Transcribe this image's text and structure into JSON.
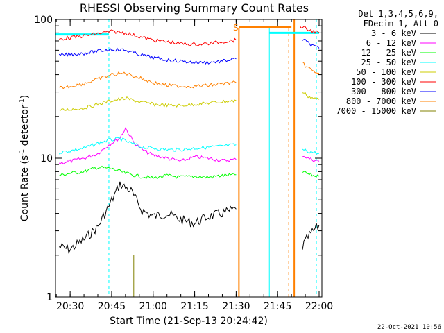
{
  "chart_data": {
    "type": "line",
    "title": "RHESSI Observing Summary Count Rates",
    "xlabel": "Start Time (21-Sep-13 20:24:42)",
    "ylabel": "Count Rate (s",
    "ylabel_sup": "-1",
    "ylabel_tail": " detector",
    "ylabel_sup2": "-1",
    "ylabel_end": ")",
    "yscale": "log",
    "ylim": [
      1,
      100
    ],
    "xlim": [
      "20:24:42",
      "22:01:00"
    ],
    "y_ticks": [
      "1",
      "10",
      "100"
    ],
    "x_ticks": [
      "20:30",
      "20:45",
      "21:00",
      "21:15",
      "21:30",
      "21:45",
      "22:00"
    ],
    "legend_header": [
      "Det 1,3,4,5,6,9,",
      "FDecim 1, Att 0"
    ],
    "legend_position": "right",
    "annotation": "S",
    "footer_date": "22-Oct-2021 10:56",
    "series": [
      {
        "name": "3 - 6 keV",
        "color": "#000000",
        "segments": [
          {
            "x": [
              "20:26",
              "20:30",
              "20:35",
              "20:40",
              "20:44",
              "20:48",
              "20:52",
              "20:56",
              "21:00",
              "21:05",
              "21:10",
              "21:15",
              "21:20",
              "21:25",
              "21:30"
            ],
            "y": [
              2.3,
              2.2,
              2.6,
              3.2,
              4.5,
              6.5,
              5.8,
              4.2,
              3.8,
              4.0,
              3.6,
              3.4,
              3.8,
              4.0,
              4.3
            ]
          },
          {
            "x": [
              "21:54",
              "21:56",
              "21:58",
              "22:00"
            ],
            "y": [
              2.3,
              2.7,
              3.0,
              3.3
            ]
          }
        ]
      },
      {
        "name": "6 - 12 keV",
        "color": "#ff00ff",
        "segments": [
          {
            "x": [
              "20:26",
              "20:30",
              "20:35",
              "20:40",
              "20:44",
              "20:48",
              "20:50",
              "20:53",
              "20:56",
              "21:00",
              "21:05",
              "21:10",
              "21:15",
              "21:20",
              "21:25",
              "21:30"
            ],
            "y": [
              9.2,
              9.5,
              10.0,
              10.8,
              12.5,
              14.0,
              16.5,
              13.0,
              11.5,
              10.5,
              10.0,
              9.5,
              10.2,
              10.0,
              9.6,
              9.8
            ]
          },
          {
            "x": [
              "21:54",
              "21:56",
              "21:58",
              "22:00"
            ],
            "y": [
              10.5,
              10.0,
              9.7,
              9.5
            ]
          }
        ]
      },
      {
        "name": "12 - 25 keV",
        "color": "#00ff00",
        "segments": [
          {
            "x": [
              "20:26",
              "20:30",
              "20:35",
              "20:40",
              "20:45",
              "20:50",
              "20:55",
              "21:00",
              "21:05",
              "21:10",
              "21:15",
              "21:20",
              "21:25",
              "21:30"
            ],
            "y": [
              7.5,
              7.8,
              8.0,
              8.6,
              8.4,
              7.8,
              7.4,
              7.2,
              7.5,
              7.3,
              7.4,
              7.3,
              7.5,
              7.6
            ]
          },
          {
            "x": [
              "21:54",
              "21:56",
              "21:58",
              "22:00"
            ],
            "y": [
              8.0,
              7.7,
              7.5,
              7.4
            ]
          }
        ]
      },
      {
        "name": "25 - 50 keV",
        "color": "#00ffff",
        "segments": [
          {
            "x": [
              "20:26",
              "20:30",
              "20:35",
              "20:40",
              "20:44",
              "20:48",
              "20:52",
              "20:56",
              "21:00",
              "21:05",
              "21:10",
              "21:15",
              "21:20",
              "21:25",
              "21:30"
            ],
            "y": [
              11.0,
              11.3,
              11.8,
              12.8,
              13.5,
              13.8,
              12.8,
              12.0,
              11.8,
              11.5,
              11.5,
              11.8,
              12.0,
              12.2,
              12.5
            ]
          },
          {
            "x": [
              "21:54",
              "21:56",
              "21:58",
              "22:00"
            ],
            "y": [
              11.5,
              11.2,
              11.0,
              10.8
            ]
          }
        ]
      },
      {
        "name": "50 - 100 keV",
        "color": "#cccc00",
        "segments": [
          {
            "x": [
              "20:26",
              "20:30",
              "20:35",
              "20:40",
              "20:45",
              "20:50",
              "20:55",
              "21:00",
              "21:05",
              "21:10",
              "21:15",
              "21:20",
              "21:25",
              "21:30"
            ],
            "y": [
              22.0,
              22.5,
              23.0,
              24.5,
              26.0,
              27.0,
              25.5,
              24.5,
              24.0,
              24.0,
              24.5,
              25.0,
              25.5,
              26.0
            ]
          },
          {
            "x": [
              "21:54",
              "21:56",
              "21:58",
              "22:00"
            ],
            "y": [
              30.0,
              28.0,
              27.0,
              26.5
            ]
          }
        ]
      },
      {
        "name": "100 - 300 keV",
        "color": "#ff0000",
        "segments": [
          {
            "x": [
              "20:26",
              "20:30",
              "20:35",
              "20:40",
              "20:45",
              "20:50",
              "20:55",
              "21:00",
              "21:05",
              "21:10",
              "21:15",
              "21:20",
              "21:25",
              "21:30"
            ],
            "y": [
              72.0,
              74.0,
              76.0,
              79.0,
              82.0,
              80.0,
              75.0,
              71.0,
              69.0,
              67.0,
              66.0,
              67.0,
              69.0,
              71.0
            ]
          },
          {
            "x": [
              "21:53",
              "21:55",
              "21:57",
              "21:59",
              "22:00"
            ],
            "y": [
              90.0,
              86.0,
              83.0,
              81.0,
              80.0
            ]
          }
        ]
      },
      {
        "name": "300 - 800 keV",
        "color": "#0000ff",
        "segments": [
          {
            "x": [
              "20:26",
              "20:30",
              "20:35",
              "20:40",
              "20:45",
              "20:50",
              "20:55",
              "21:00",
              "21:05",
              "21:10",
              "21:15",
              "21:20",
              "21:25",
              "21:30"
            ],
            "y": [
              55.0,
              56.0,
              57.0,
              59.0,
              61.0,
              60.0,
              56.0,
              53.0,
              51.0,
              50.0,
              49.0,
              49.0,
              50.0,
              52.0
            ]
          },
          {
            "x": [
              "21:54",
              "21:56",
              "21:58",
              "22:00"
            ],
            "y": [
              72.0,
              68.0,
              64.0,
              62.0
            ]
          }
        ]
      },
      {
        "name": "800 - 7000 keV",
        "color": "#ff8000",
        "segments": [
          {
            "x": [
              "20:26",
              "20:30",
              "20:35",
              "20:40",
              "20:45",
              "20:50",
              "20:55",
              "21:00",
              "21:05",
              "21:10",
              "21:15",
              "21:20",
              "21:25",
              "21:30"
            ],
            "y": [
              32.0,
              33.0,
              34.5,
              37.0,
              40.0,
              41.0,
              38.0,
              35.0,
              33.5,
              33.0,
              33.0,
              33.5,
              34.5,
              35.0
            ]
          },
          {
            "x": [
              "21:54",
              "21:56",
              "21:58",
              "22:00"
            ],
            "y": [
              48.0,
              45.0,
              42.0,
              41.0
            ]
          }
        ]
      },
      {
        "name": "7000 - 15000 keV",
        "color": "#808000",
        "segments": [
          {
            "x": [
              "20:53",
              "20:53"
            ],
            "y": [
              1.0,
              2.0
            ]
          }
        ]
      }
    ]
  }
}
